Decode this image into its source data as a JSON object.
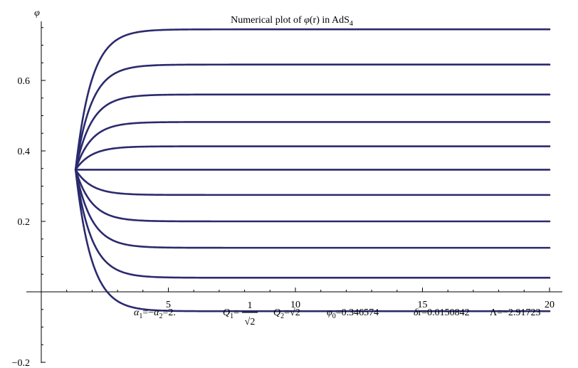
{
  "chart_data": {
    "type": "line",
    "title": "Numerical plot of φ(r) in AdS₄",
    "title_parts": {
      "pre": "Numerical plot of ",
      "phi": "φ",
      "arg": "(r) in AdS",
      "sub": "4"
    },
    "ylabel": "φ",
    "xlabel": "",
    "xlim": [
      0,
      20
    ],
    "ylim": [
      -0.2,
      0.76
    ],
    "x_ticks": [
      5,
      10,
      15,
      20
    ],
    "x_tick_labels": [
      "5",
      "10",
      "15",
      "20"
    ],
    "y_ticks": [
      -0.2,
      0.2,
      0.4,
      0.6
    ],
    "y_tick_labels": [
      "−0.2",
      "0.2",
      "0.4",
      "0.6"
    ],
    "grid": false,
    "legend": "none",
    "line_color": "#2b2a6e",
    "start_point": {
      "x": 1.35,
      "y": 0.3466
    },
    "curve_rate": 1.6,
    "series": [
      {
        "asymptote": 0.745
      },
      {
        "asymptote": 0.645
      },
      {
        "asymptote": 0.56
      },
      {
        "asymptote": 0.482
      },
      {
        "asymptote": 0.413
      },
      {
        "asymptote": 0.3466
      },
      {
        "asymptote": 0.275
      },
      {
        "asymptote": 0.2
      },
      {
        "asymptote": 0.125
      },
      {
        "asymptote": 0.04
      },
      {
        "asymptote": -0.055
      }
    ],
    "annotation": {
      "alpha": {
        "a1": "α",
        "s1": "1",
        "eq1": "=−",
        "a2": "α",
        "s2": "2",
        "val": "=2."
      },
      "q1": {
        "q": "Q",
        "s": "1",
        "eq": "=",
        "num": "1",
        "den": "√2"
      },
      "q2": {
        "q": "Q",
        "s": "2",
        "eq": "=",
        "val": "√2"
      },
      "phi0": {
        "phi": "φ",
        "s": "0",
        "val": "=0.346574"
      },
      "dr": {
        "d": "δ",
        "val": "r=0.0150842"
      },
      "lambda": {
        "l": "Λ",
        "val": "=−2.91723"
      }
    }
  }
}
